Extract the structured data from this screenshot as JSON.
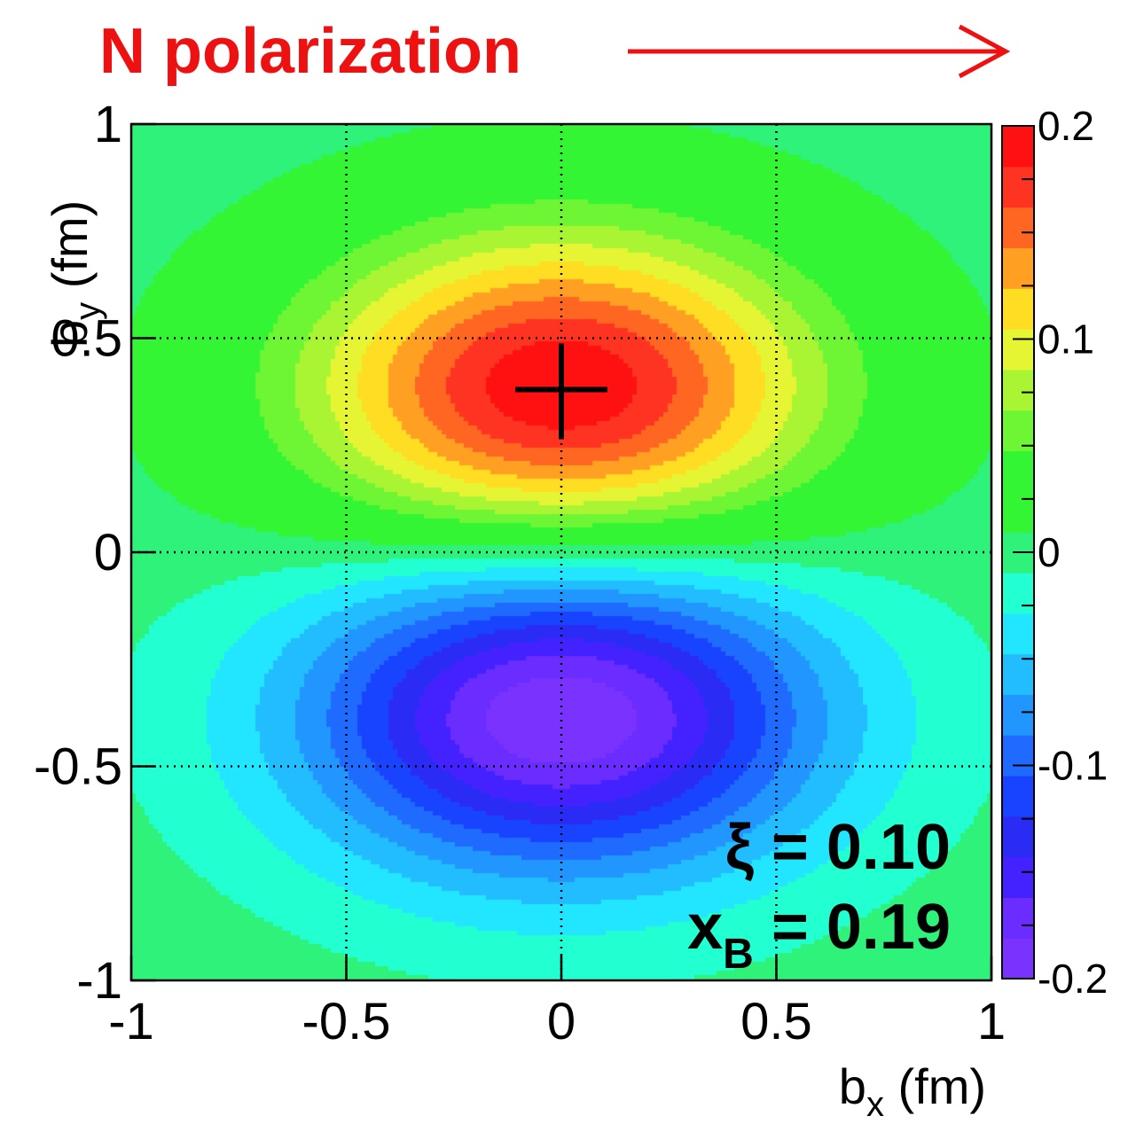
{
  "chart_data": {
    "type": "heatmap",
    "title": "N polarization",
    "title_arrow": "right",
    "xlabel": {
      "base": "b",
      "sub": "x",
      "unit": " (fm)"
    },
    "ylabel": {
      "base": "b",
      "sub": "y",
      "unit": " (fm)"
    },
    "xlim": [
      -1,
      1
    ],
    "ylim": [
      -1,
      1
    ],
    "x_ticks": [
      {
        "value": -1,
        "label": "-1"
      },
      {
        "value": -0.5,
        "label": "-0.5"
      },
      {
        "value": 0,
        "label": "0"
      },
      {
        "value": 0.5,
        "label": "0.5"
      },
      {
        "value": 1,
        "label": "1"
      }
    ],
    "y_ticks": [
      {
        "value": -1,
        "label": "-1"
      },
      {
        "value": -0.5,
        "label": "-0.5"
      },
      {
        "value": 0,
        "label": "0"
      },
      {
        "value": 0.5,
        "label": "0.5"
      },
      {
        "value": 1,
        "label": "1"
      }
    ],
    "grid": true,
    "z_range": [
      -0.2,
      0.2
    ],
    "colorbar_ticks": [
      {
        "value": 0.2,
        "label": "0.2"
      },
      {
        "value": 0.1,
        "label": "0.1"
      },
      {
        "value": 0,
        "label": "0"
      },
      {
        "value": -0.1,
        "label": "-0.1"
      },
      {
        "value": -0.2,
        "label": "-0.2"
      }
    ],
    "colorbar_levels": 20,
    "distribution": {
      "positive_lobe": {
        "center": [
          0,
          0.38
        ],
        "peak": 0.2,
        "sigma_x": 0.42,
        "sigma_y": 0.26
      },
      "negative_lobe": {
        "center": [
          0,
          -0.38
        ],
        "peak": -0.2,
        "sigma_x": 0.42,
        "sigma_y": 0.26
      }
    },
    "marker": {
      "shape": "cross",
      "x": 0,
      "y": 0.38
    },
    "annotations": [
      {
        "symbol": "ξ",
        "sub": "",
        "text": " = 0.10"
      },
      {
        "symbol": "x",
        "sub": "B",
        "text": " = 0.19"
      }
    ],
    "colors": {
      "title": "#ee1111",
      "palette": [
        "#7a33ff",
        "#6a2cff",
        "#4422ff",
        "#2a2cf5",
        "#1844ff",
        "#1f6bff",
        "#2296ff",
        "#22bdff",
        "#22e6ff",
        "#22ffd0",
        "#2ef27a",
        "#33f533",
        "#33f533",
        "#6ef533",
        "#aaf533",
        "#e6f533",
        "#ffdd22",
        "#ffa022",
        "#ff6622",
        "#ff3322",
        "#ff1111"
      ]
    }
  }
}
